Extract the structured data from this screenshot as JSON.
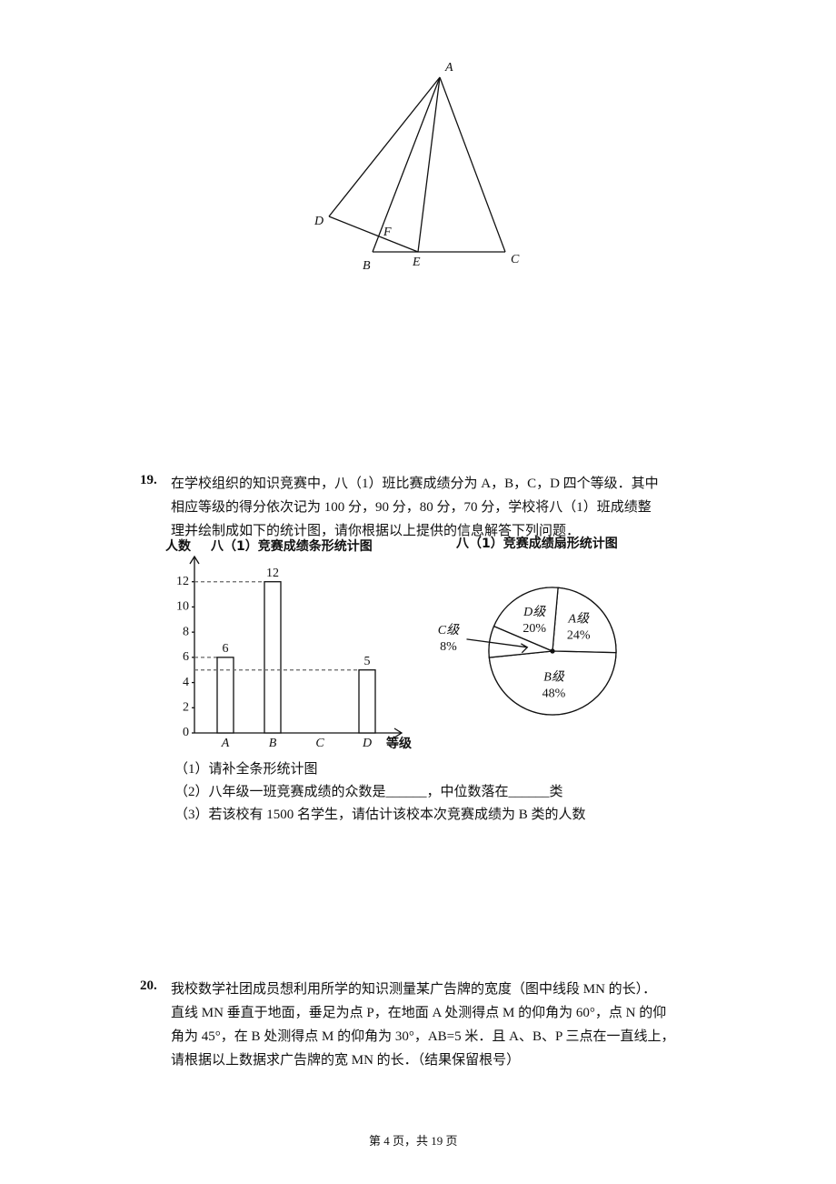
{
  "figure": {
    "points": [
      "A",
      "D",
      "F",
      "B",
      "E",
      "C"
    ]
  },
  "questions": [
    {
      "number": "19.",
      "lines": [
        "在学校组织的知识竞赛中，八（1）班比赛成绩分为 A，B，C，D 四个等级．其中",
        "相应等级的得分依次记为 100 分，90 分，80 分，70 分，学校将八（1）班成绩整",
        "理并绘制成如下的统计图，请你根据以上提供的信息解答下列问题．"
      ],
      "bar_chart": {
        "type": "bar",
        "title": "八（1）竞赛成绩条形统计图",
        "y_label": "人数",
        "x_label": "等级",
        "categories": [
          "A",
          "B",
          "C",
          "D"
        ],
        "values": [
          6,
          12,
          null,
          5
        ],
        "ylim": [
          0,
          14
        ],
        "yticks": [
          0,
          2,
          4,
          6,
          8,
          10,
          12
        ],
        "color": "#ffffff"
      },
      "pie_chart": {
        "type": "pie",
        "title": "八（1）竞赛成绩扇形统计图",
        "categories": [
          "A级",
          "B级",
          "C级",
          "D级"
        ],
        "values": [
          24,
          48,
          8,
          20
        ],
        "value_labels": [
          "24%",
          "48%",
          "8%",
          "20%"
        ]
      },
      "parts": [
        "（1）请补全条形统计图",
        "（2）八年级一班竞赛成绩的众数是______，中位数落在______类",
        "（3）若该校有 1500 名学生，请估计该校本次竞赛成绩为 B 类的人数"
      ]
    },
    {
      "number": "20.",
      "lines": [
        "我校数学社团成员想利用所学的知识测量某广告牌的宽度（图中线段 MN 的长）．",
        "直线 MN 垂直于地面，垂足为点 P，在地面 A 处测得点 M 的仰角为 60°，点 N 的仰",
        "角为 45°，在 B 处测得点 M 的仰角为 30°，AB=5 米．且 A、B、P 三点在一直线上，",
        "请根据以上数据求广告牌的宽 MN 的长．（结果保留根号）"
      ]
    }
  ],
  "footer": "第 4 页，共 19 页"
}
